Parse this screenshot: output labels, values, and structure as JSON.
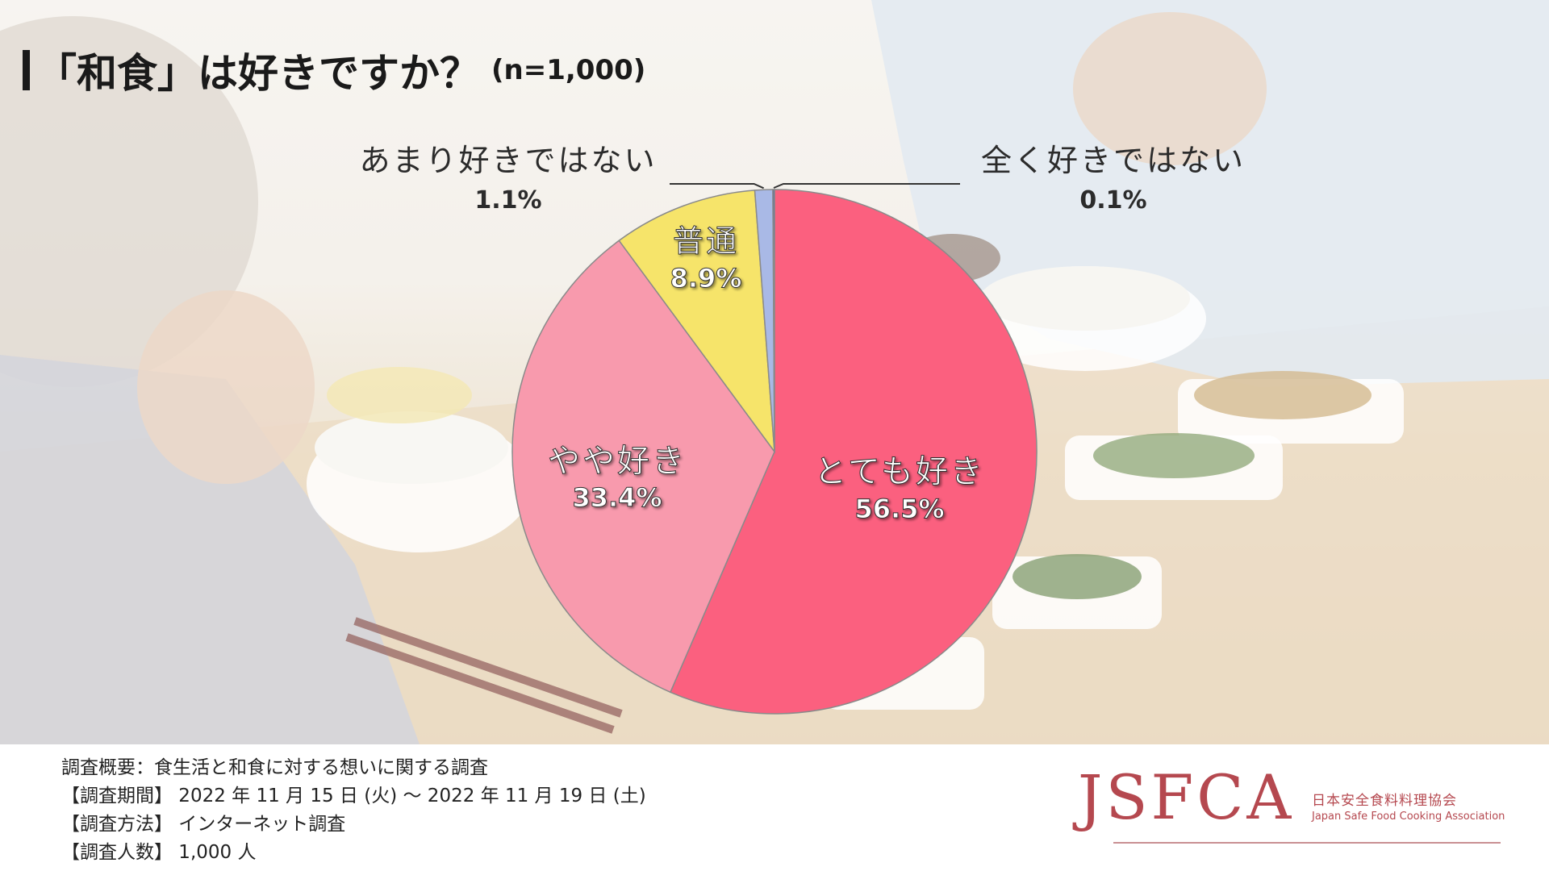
{
  "title": {
    "main": "「和食」は好きですか？",
    "sample": "(n=1,000)"
  },
  "colors": {
    "very_like": "#fb607f",
    "somewhat_like": "#f89aad",
    "neutral": "#f6e46a",
    "dislike_somewhat": "#a9b9e6",
    "dislike_all": "#3650a8"
  },
  "chart_data": {
    "type": "pie",
    "title": "「和食」は好きですか？",
    "n": "(n=1,000)",
    "slices": [
      {
        "label": "とても好き",
        "value": 56.5,
        "value_label": "56.5%",
        "color": "#fb607f"
      },
      {
        "label": "やや好き",
        "value": 33.4,
        "value_label": "33.4%",
        "color": "#f89aad"
      },
      {
        "label": "普通",
        "value": 8.9,
        "value_label": "8.9%",
        "color": "#f6e46a"
      },
      {
        "label": "あまり好きではない",
        "value": 1.1,
        "value_label": "1.1%",
        "color": "#a9b9e6"
      },
      {
        "label": "全く好きではない",
        "value": 0.1,
        "value_label": "0.1%",
        "color": "#3650a8"
      }
    ],
    "start": "top",
    "direction": "clockwise",
    "legend": "none"
  },
  "survey": {
    "line1": "調査概要：食生活と和食に対する想いに関する調査",
    "line2": "【調査期間】 2022 年 11 月 15 日 (火) ～ 2022 年 11 月 19 日 (土)",
    "line3": "【調査方法】 インターネット調査",
    "line4": "【調査人数】 1,000 人"
  },
  "logo": {
    "mark": "JSFCA",
    "name_jp": "日本安全食料料理協会",
    "name_en": "Japan Safe Food Cooking Association"
  }
}
